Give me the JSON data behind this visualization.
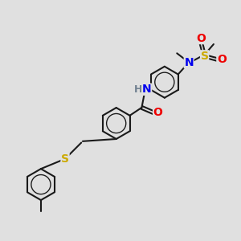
{
  "background_color": "#e0e0e0",
  "bond_color": "#1a1a1a",
  "bond_width": 1.5,
  "ring_r": 0.55,
  "atom_colors": {
    "N": "#0000ee",
    "O": "#ee0000",
    "S_thio": "#ccaa00",
    "S_sulfonyl": "#ccaa00",
    "H": "#708090"
  },
  "font_size_atom": 10,
  "font_size_h": 9
}
